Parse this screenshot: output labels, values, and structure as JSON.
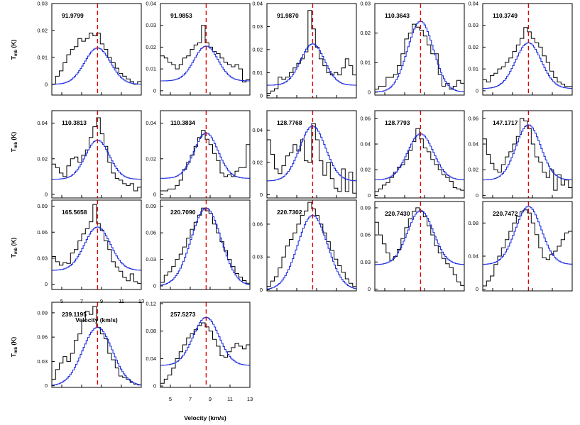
{
  "chart_data": {
    "type": "line",
    "description_free": true,
    "xlabel": "Velocity (km/s)",
    "ylabel": "T_mb (K)",
    "ylabel_main": "T",
    "ylabel_sub": "mb",
    "ylabel_unit": " (K)",
    "xlim": [
      4,
      13
    ],
    "xticks": [
      5,
      7,
      9,
      11,
      13
    ],
    "reference_velocity": 8.6,
    "colors": {
      "observed": "#000000",
      "model": "#1f2fe0",
      "reference": "#e00000"
    },
    "panels": [
      {
        "label": "91.9799",
        "yticks": [
          "0",
          "0.01",
          "0.02",
          "0.03"
        ],
        "yticks_v": [
          0,
          0.01,
          0.02,
          0.03
        ],
        "ylim": [
          -0.004,
          0.03
        ],
        "model": {
          "amp": 0.0135,
          "center": 8.6,
          "sigma": 1.3,
          "baseline": 0.0
        },
        "observed": [
          0.0,
          0.003,
          0.005,
          0.008,
          0.011,
          0.013,
          0.014,
          0.017,
          0.016,
          0.017,
          0.019,
          0.018,
          0.019,
          0.015,
          0.013,
          0.01,
          0.008,
          0.006,
          0.004,
          0.003,
          0.002,
          0.001,
          0.0,
          0.001
        ]
      },
      {
        "label": "91.9853",
        "yticks": [
          "0",
          "0.01",
          "0.02",
          "0.03",
          "0.04"
        ],
        "yticks_v": [
          0,
          0.01,
          0.02,
          0.03,
          0.04
        ],
        "ylim": [
          -0.002,
          0.04
        ],
        "model": {
          "amp": 0.016,
          "center": 8.6,
          "sigma": 1.2,
          "baseline": 0.0045
        },
        "observed": [
          0.016,
          0.015,
          0.013,
          0.012,
          0.01,
          0.012,
          0.015,
          0.016,
          0.019,
          0.021,
          0.022,
          0.03,
          0.022,
          0.02,
          0.018,
          0.017,
          0.015,
          0.013,
          0.012,
          0.011,
          0.012,
          0.01,
          0.004,
          0.005
        ]
      },
      {
        "label": "91.9870",
        "yticks": [
          "0",
          "0.01",
          "0.02",
          "0.03",
          "0.04"
        ],
        "yticks_v": [
          0,
          0.01,
          0.02,
          0.03,
          0.04
        ],
        "ylim": [
          -0.001,
          0.04
        ],
        "model": {
          "amp": 0.018,
          "center": 8.6,
          "sigma": 1.2,
          "baseline": 0.0045
        },
        "observed": [
          0.001,
          0.002,
          0.003,
          0.008,
          0.007,
          0.008,
          0.01,
          0.012,
          0.014,
          0.016,
          0.019,
          0.037,
          0.029,
          0.021,
          0.016,
          0.013,
          0.01,
          0.009,
          0.01,
          0.009,
          0.012,
          0.016,
          0.013,
          0.009
        ]
      },
      {
        "label": "110.3643",
        "yticks": [
          "0",
          "0.01",
          "0.02",
          "0.03"
        ],
        "yticks_v": [
          0,
          0.01,
          0.02,
          0.03
        ],
        "ylim": [
          -0.001,
          0.03
        ],
        "model": {
          "amp": 0.024,
          "center": 8.6,
          "sigma": 1.3,
          "baseline": 0.0
        },
        "observed": [
          0.001,
          0.002,
          0.002,
          0.005,
          0.005,
          0.006,
          0.009,
          0.013,
          0.018,
          0.02,
          0.023,
          0.022,
          0.021,
          0.019,
          0.016,
          0.013,
          0.013,
          0.006,
          0.002,
          0.003,
          0.001,
          0.002,
          0.004,
          0.003
        ]
      },
      {
        "label": "110.3749",
        "yticks": [
          "0",
          "0.01",
          "0.02",
          "0.03",
          "0.04"
        ],
        "yticks_v": [
          0,
          0.01,
          0.02,
          0.03,
          0.04
        ],
        "ylim": [
          -0.002,
          0.04
        ],
        "model": {
          "amp": 0.021,
          "center": 8.6,
          "sigma": 1.3,
          "baseline": 0.001
        },
        "observed": [
          0.005,
          0.004,
          0.007,
          0.008,
          0.01,
          0.011,
          0.013,
          0.015,
          0.018,
          0.021,
          0.024,
          0.029,
          0.027,
          0.024,
          0.022,
          0.02,
          0.016,
          0.013,
          0.009,
          0.006,
          0.004,
          0.003,
          0.002,
          0.002
        ]
      },
      {
        "label": "110.3813",
        "yticks": [
          "0",
          "0.02",
          "0.04"
        ],
        "yticks_v": [
          0,
          0.02,
          0.04
        ],
        "ylim": [
          -0.002,
          0.047
        ],
        "model": {
          "amp": 0.022,
          "center": 8.6,
          "sigma": 1.2,
          "baseline": 0.0085
        },
        "observed": [
          0.017,
          0.015,
          0.012,
          0.01,
          0.016,
          0.02,
          0.021,
          0.018,
          0.022,
          0.025,
          0.032,
          0.038,
          0.043,
          0.034,
          0.027,
          0.018,
          0.012,
          0.009,
          0.008,
          0.006,
          0.005,
          0.006,
          0.002,
          0.004
        ]
      },
      {
        "label": "110.3834",
        "yticks": [
          "0",
          "0.02",
          "0.04"
        ],
        "yticks_v": [
          0,
          0.02,
          0.04
        ],
        "ylim": [
          -0.002,
          0.047
        ],
        "model": {
          "amp": 0.0255,
          "center": 8.6,
          "sigma": 1.2,
          "baseline": 0.009
        },
        "observed": [
          0.002,
          0.002,
          0.003,
          0.003,
          0.005,
          0.008,
          0.014,
          0.018,
          0.022,
          0.027,
          0.032,
          0.036,
          0.031,
          0.028,
          0.023,
          0.019,
          0.012,
          0.01,
          0.011,
          0.01,
          0.013,
          0.015,
          0.015,
          0.028
        ]
      },
      {
        "label": "128.7768",
        "yticks": [
          "0",
          "0.02",
          "0.04"
        ],
        "yticks_v": [
          0,
          0.02,
          0.04
        ],
        "ylim": [
          -0.002,
          0.052
        ],
        "model": {
          "amp": 0.034,
          "center": 8.6,
          "sigma": 1.3,
          "baseline": 0.0085
        },
        "observed": [
          0.034,
          0.025,
          0.016,
          0.013,
          0.018,
          0.024,
          0.026,
          0.031,
          0.027,
          0.034,
          0.021,
          0.02,
          0.044,
          0.034,
          0.021,
          0.012,
          0.02,
          0.01,
          0.004,
          0.002,
          0.016,
          0.002,
          0.014,
          0.001
        ]
      },
      {
        "label": "128.7793",
        "yticks": [
          "0",
          "0.02",
          "0.04",
          "0.06"
        ],
        "yticks_v": [
          0,
          0.02,
          0.04,
          0.06
        ],
        "ylim": [
          -0.002,
          0.066
        ],
        "model": {
          "amp": 0.036,
          "center": 8.6,
          "sigma": 1.3,
          "baseline": 0.012
        },
        "observed": [
          0.003,
          0.005,
          0.008,
          0.01,
          0.014,
          0.018,
          0.022,
          0.024,
          0.028,
          0.035,
          0.042,
          0.052,
          0.044,
          0.037,
          0.034,
          0.028,
          0.024,
          0.02,
          0.016,
          0.014,
          0.011,
          0.006,
          0.005,
          0.004
        ]
      },
      {
        "label": "147.1717",
        "yticks": [
          "0",
          "0.02",
          "0.04",
          "0.06"
        ],
        "yticks_v": [
          0,
          0.02,
          0.04,
          0.06
        ],
        "ylim": [
          -0.002,
          0.066
        ],
        "model": {
          "amp": 0.043,
          "center": 8.6,
          "sigma": 1.25,
          "baseline": 0.012
        },
        "observed": [
          0.044,
          0.032,
          0.025,
          0.02,
          0.018,
          0.024,
          0.03,
          0.034,
          0.04,
          0.046,
          0.06,
          0.058,
          0.052,
          0.04,
          0.03,
          0.026,
          0.018,
          0.014,
          0.02,
          0.004,
          0.016,
          0.008,
          0.012,
          0.006
        ]
      },
      {
        "label": "165.5658",
        "yticks": [
          "0",
          "0.03",
          "0.06",
          "0.09"
        ],
        "yticks_v": [
          0,
          0.03,
          0.06,
          0.09
        ],
        "ylim": [
          -0.006,
          0.097
        ],
        "model": {
          "amp": 0.05,
          "center": 8.6,
          "sigma": 1.3,
          "baseline": 0.016
        },
        "observed": [
          0.032,
          0.026,
          0.022,
          0.025,
          0.024,
          0.036,
          0.04,
          0.05,
          0.058,
          0.064,
          0.072,
          0.092,
          0.07,
          0.062,
          0.05,
          0.04,
          0.026,
          0.02,
          0.015,
          0.008,
          0.004,
          0.012,
          0.003,
          0.001
        ]
      },
      {
        "label": "220.7090",
        "yticks": [
          "0",
          "0.03",
          "0.06",
          "0.09"
        ],
        "yticks_v": [
          0,
          0.03,
          0.06,
          0.09
        ],
        "ylim": [
          -0.004,
          0.097
        ],
        "model": {
          "amp": 0.088,
          "center": 8.6,
          "sigma": 1.5,
          "baseline": 0.0
        },
        "observed": [
          0.004,
          0.012,
          0.016,
          0.022,
          0.03,
          0.036,
          0.044,
          0.054,
          0.064,
          0.072,
          0.08,
          0.088,
          0.085,
          0.082,
          0.07,
          0.06,
          0.05,
          0.04,
          0.03,
          0.022,
          0.014,
          0.01,
          0.006,
          0.003
        ]
      },
      {
        "label": "220.7302",
        "yticks": [
          "0",
          "0.03",
          "0.06"
        ],
        "yticks_v": [
          0,
          0.03,
          0.06
        ],
        "ylim": [
          -0.001,
          0.082
        ],
        "model": {
          "amp": 0.068,
          "center": 8.6,
          "sigma": 1.5,
          "baseline": 0.0
        },
        "observed": [
          0.003,
          0.008,
          0.012,
          0.02,
          0.03,
          0.04,
          0.046,
          0.052,
          0.06,
          0.068,
          0.072,
          0.08,
          0.074,
          0.068,
          0.06,
          0.052,
          0.044,
          0.036,
          0.028,
          0.022,
          0.016,
          0.01,
          0.006,
          0.003
        ]
      },
      {
        "label": "220.7430",
        "yticks": [
          "0",
          "0.03",
          "0.06",
          "0.09"
        ],
        "yticks_v": [
          0,
          0.03,
          0.06,
          0.09
        ],
        "ylim": [
          -0.002,
          0.097
        ],
        "model": {
          "amp": 0.06,
          "center": 8.6,
          "sigma": 1.3,
          "baseline": 0.027
        },
        "observed": [
          0.074,
          0.06,
          0.05,
          0.04,
          0.032,
          0.036,
          0.044,
          0.056,
          0.068,
          0.078,
          0.086,
          0.09,
          0.086,
          0.08,
          0.07,
          0.06,
          0.048,
          0.04,
          0.034,
          0.028,
          0.024,
          0.016,
          0.008,
          0.004
        ]
      },
      {
        "label": "220.7472",
        "yticks": [
          "0",
          "0.04",
          "0.08"
        ],
        "yticks_v": [
          0,
          0.04,
          0.08
        ],
        "ylim": [
          -0.002,
          0.106
        ],
        "model": {
          "amp": 0.07,
          "center": 8.6,
          "sigma": 1.3,
          "baseline": 0.03
        },
        "observed": [
          0.004,
          0.01,
          0.016,
          0.03,
          0.04,
          0.05,
          0.06,
          0.07,
          0.08,
          0.088,
          0.094,
          0.096,
          0.092,
          0.08,
          0.066,
          0.05,
          0.038,
          0.036,
          0.042,
          0.046,
          0.052,
          0.06,
          0.068,
          0.07
        ]
      },
      {
        "label": "239.1195",
        "yticks": [
          "0",
          "0.03",
          "0.06",
          "0.09"
        ],
        "yticks_v": [
          0,
          0.03,
          0.06,
          0.09
        ],
        "ylim": [
          -0.002,
          0.103
        ],
        "model": {
          "amp": 0.072,
          "center": 8.6,
          "sigma": 1.5,
          "baseline": 0.0
        },
        "observed": [
          0.008,
          0.02,
          0.028,
          0.036,
          0.03,
          0.04,
          0.056,
          0.064,
          0.08,
          0.092,
          0.088,
          0.098,
          0.072,
          0.064,
          0.058,
          0.04,
          0.032,
          0.022,
          0.012,
          0.01,
          0.008,
          0.004,
          0.002,
          0.001
        ]
      },
      {
        "label": "257.5273",
        "yticks": [
          "0",
          "0.04",
          "0.08",
          "0.12"
        ],
        "yticks_v": [
          0,
          0.04,
          0.08,
          0.12
        ],
        "ylim": [
          -0.002,
          0.122
        ],
        "model": {
          "amp": 0.07,
          "center": 8.6,
          "sigma": 1.3,
          "baseline": 0.03
        },
        "observed": [
          0.004,
          0.01,
          0.016,
          0.026,
          0.04,
          0.05,
          0.06,
          0.07,
          0.076,
          0.082,
          0.088,
          0.092,
          0.086,
          0.08,
          0.068,
          0.058,
          0.044,
          0.042,
          0.05,
          0.056,
          0.062,
          0.058,
          0.054,
          0.06
        ]
      }
    ]
  }
}
